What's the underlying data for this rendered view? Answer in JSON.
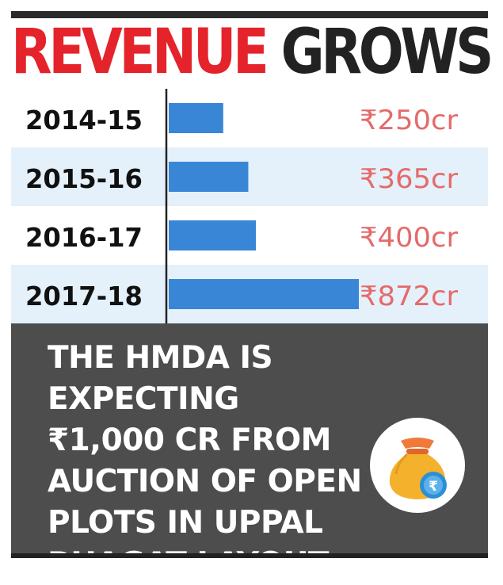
{
  "header": {
    "title_red": "REVENUE",
    "title_dark": "GROWS"
  },
  "chart_data": {
    "type": "bar",
    "orientation": "horizontal",
    "categories": [
      "2014-15",
      "2015-16",
      "2016-17",
      "2017-18"
    ],
    "values": [
      250,
      365,
      400,
      872
    ],
    "value_labels": [
      "₹250cr",
      "₹365cr",
      "₹400cr",
      "₹872cr"
    ],
    "unit": "cr",
    "xlim": [
      0,
      872
    ],
    "grid": false,
    "legend": "none",
    "colors": {
      "bar": "#3a86d6",
      "value_label": "#e56a6a",
      "band": "#e4f0fa",
      "category_text": "#111111",
      "axis": "#222222"
    }
  },
  "callout": {
    "lines": [
      "THE HMDA IS EXPECTING",
      "₹1,000 CR FROM",
      "AUCTION OF OPEN",
      "PLOTS IN UPPAL",
      "BHAGAT LAYOUT"
    ],
    "icon": "money-bag-icon",
    "colors": {
      "background": "#4d4d4d",
      "text": "#ffffff"
    }
  }
}
